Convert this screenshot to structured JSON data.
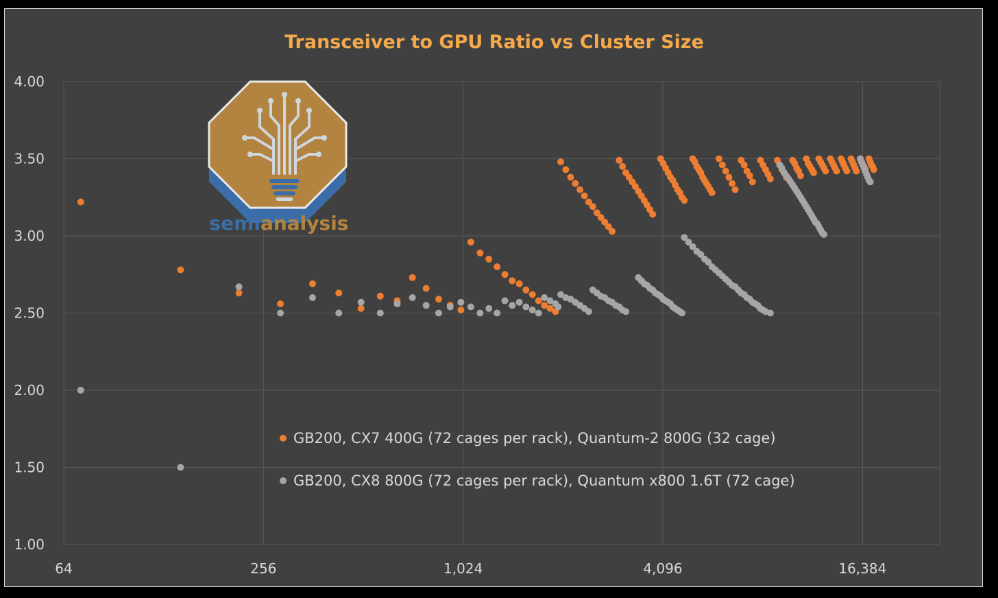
{
  "chart_data": {
    "type": "scatter",
    "title": "Transceiver to GPU Ratio vs Cluster Size",
    "xlabel": "",
    "ylabel": "",
    "x_scale": "log2",
    "xlim": [
      64,
      28000
    ],
    "ylim": [
      1.0,
      4.0
    ],
    "x_ticks": [
      64,
      256,
      1024,
      4096,
      16384
    ],
    "x_tick_labels": [
      "64",
      "256",
      "1,024",
      "4,096",
      "16,384"
    ],
    "y_ticks": [
      1.0,
      1.5,
      2.0,
      2.5,
      3.0,
      3.5,
      4.0
    ],
    "y_tick_labels": [
      "1.00",
      "1.50",
      "2.00",
      "2.50",
      "3.00",
      "3.50",
      "4.00"
    ],
    "grid": true,
    "legend_position": "center",
    "series": [
      {
        "name": "GB200, CX7 400G (72 cages per rack), Quantum-2 800G (32 cage)",
        "color": "#ed7d31",
        "points": [
          [
            72,
            3.22
          ],
          [
            144,
            2.78
          ],
          [
            216,
            2.63
          ],
          [
            288,
            2.56
          ],
          [
            360,
            2.69
          ],
          [
            432,
            2.63
          ],
          [
            504,
            2.53
          ],
          [
            576,
            2.61
          ],
          [
            648,
            2.58
          ],
          [
            720,
            2.73
          ],
          [
            792,
            2.66
          ],
          [
            864,
            2.59
          ],
          [
            936,
            2.55
          ],
          [
            1008,
            2.52
          ],
          [
            1080,
            2.96
          ],
          [
            1152,
            2.89
          ],
          [
            1224,
            2.85
          ],
          [
            1296,
            2.8
          ],
          [
            1368,
            2.75
          ],
          [
            1440,
            2.71
          ],
          [
            1512,
            2.69
          ],
          [
            1584,
            2.65
          ],
          [
            1656,
            2.62
          ],
          [
            1728,
            2.58
          ],
          [
            1800,
            2.55
          ],
          [
            1872,
            2.53
          ],
          [
            1944,
            2.51
          ],
          [
            2016,
            3.48
          ],
          [
            2088,
            3.43
          ],
          [
            2160,
            3.38
          ],
          [
            2232,
            3.34
          ],
          [
            2304,
            3.3
          ],
          [
            2376,
            3.26
          ],
          [
            2448,
            3.22
          ],
          [
            2520,
            3.19
          ],
          [
            2592,
            3.15
          ],
          [
            2664,
            3.12
          ],
          [
            2736,
            3.09
          ],
          [
            2808,
            3.06
          ],
          [
            2880,
            3.03
          ],
          [
            3024,
            3.49
          ],
          [
            3096,
            3.45
          ],
          [
            3168,
            3.41
          ],
          [
            3240,
            3.38
          ],
          [
            3312,
            3.35
          ],
          [
            3384,
            3.32
          ],
          [
            3456,
            3.29
          ],
          [
            3528,
            3.26
          ],
          [
            3600,
            3.23
          ],
          [
            3672,
            3.2
          ],
          [
            3744,
            3.17
          ],
          [
            3816,
            3.14
          ],
          [
            4032,
            3.5
          ],
          [
            4104,
            3.47
          ],
          [
            4176,
            3.44
          ],
          [
            4248,
            3.41
          ],
          [
            4320,
            3.38
          ],
          [
            4392,
            3.36
          ],
          [
            4464,
            3.33
          ],
          [
            4536,
            3.3
          ],
          [
            4608,
            3.28
          ],
          [
            4680,
            3.25
          ],
          [
            4752,
            3.23
          ],
          [
            5040,
            3.5
          ],
          [
            5112,
            3.48
          ],
          [
            5184,
            3.45
          ],
          [
            5256,
            3.43
          ],
          [
            5328,
            3.41
          ],
          [
            5400,
            3.38
          ],
          [
            5472,
            3.36
          ],
          [
            5544,
            3.34
          ],
          [
            5616,
            3.32
          ],
          [
            5688,
            3.3
          ],
          [
            5760,
            3.28
          ],
          [
            6048,
            3.5
          ],
          [
            6192,
            3.46
          ],
          [
            6336,
            3.42
          ],
          [
            6480,
            3.38
          ],
          [
            6624,
            3.34
          ],
          [
            6768,
            3.3
          ],
          [
            7056,
            3.49
          ],
          [
            7200,
            3.46
          ],
          [
            7344,
            3.42
          ],
          [
            7488,
            3.39
          ],
          [
            7632,
            3.35
          ],
          [
            8064,
            3.49
          ],
          [
            8208,
            3.46
          ],
          [
            8352,
            3.43
          ],
          [
            8496,
            3.4
          ],
          [
            8640,
            3.37
          ],
          [
            9072,
            3.49
          ],
          [
            9216,
            3.46
          ],
          [
            9360,
            3.43
          ],
          [
            9504,
            3.41
          ],
          [
            9648,
            3.38
          ],
          [
            10080,
            3.49
          ],
          [
            10224,
            3.47
          ],
          [
            10368,
            3.44
          ],
          [
            10512,
            3.42
          ],
          [
            10656,
            3.39
          ],
          [
            11088,
            3.5
          ],
          [
            11232,
            3.47
          ],
          [
            11376,
            3.45
          ],
          [
            11520,
            3.43
          ],
          [
            11664,
            3.41
          ],
          [
            12096,
            3.5
          ],
          [
            12240,
            3.48
          ],
          [
            12384,
            3.46
          ],
          [
            12528,
            3.44
          ],
          [
            12672,
            3.42
          ],
          [
            13104,
            3.5
          ],
          [
            13248,
            3.48
          ],
          [
            13392,
            3.46
          ],
          [
            13536,
            3.44
          ],
          [
            13680,
            3.42
          ],
          [
            14112,
            3.5
          ],
          [
            14256,
            3.48
          ],
          [
            14400,
            3.46
          ],
          [
            14544,
            3.44
          ],
          [
            14688,
            3.42
          ],
          [
            15120,
            3.5
          ],
          [
            15264,
            3.48
          ],
          [
            15408,
            3.46
          ],
          [
            15552,
            3.44
          ],
          [
            15696,
            3.42
          ],
          [
            16128,
            3.5
          ],
          [
            16272,
            3.48
          ],
          [
            16416,
            3.46
          ],
          [
            16560,
            3.45
          ],
          [
            16704,
            3.43
          ],
          [
            17136,
            3.5
          ],
          [
            17280,
            3.48
          ],
          [
            17424,
            3.46
          ],
          [
            17568,
            3.45
          ],
          [
            17712,
            3.43
          ]
        ]
      },
      {
        "name": "GB200, CX8 800G (72 cages per rack), Quantum x800 1.6T (72 cage)",
        "color": "#a6a6a6",
        "points": [
          [
            72,
            2.0
          ],
          [
            144,
            1.5
          ],
          [
            216,
            2.67
          ],
          [
            288,
            2.5
          ],
          [
            360,
            2.6
          ],
          [
            432,
            2.5
          ],
          [
            504,
            2.57
          ],
          [
            576,
            2.5
          ],
          [
            648,
            2.56
          ],
          [
            720,
            2.6
          ],
          [
            792,
            2.55
          ],
          [
            864,
            2.5
          ],
          [
            936,
            2.54
          ],
          [
            1008,
            2.57
          ],
          [
            1080,
            2.54
          ],
          [
            1152,
            2.5
          ],
          [
            1224,
            2.53
          ],
          [
            1296,
            2.5
          ],
          [
            1368,
            2.58
          ],
          [
            1440,
            2.55
          ],
          [
            1512,
            2.57
          ],
          [
            1584,
            2.54
          ],
          [
            1656,
            2.52
          ],
          [
            1728,
            2.5
          ],
          [
            1800,
            2.6
          ],
          [
            1872,
            2.58
          ],
          [
            1944,
            2.56
          ],
          [
            1980,
            2.54
          ],
          [
            2016,
            2.62
          ],
          [
            2088,
            2.6
          ],
          [
            2160,
            2.59
          ],
          [
            2232,
            2.57
          ],
          [
            2304,
            2.55
          ],
          [
            2376,
            2.53
          ],
          [
            2448,
            2.51
          ],
          [
            2520,
            2.65
          ],
          [
            2592,
            2.63
          ],
          [
            2664,
            2.61
          ],
          [
            2736,
            2.6
          ],
          [
            2808,
            2.58
          ],
          [
            2880,
            2.57
          ],
          [
            2952,
            2.55
          ],
          [
            3024,
            2.54
          ],
          [
            3096,
            2.52
          ],
          [
            3168,
            2.51
          ],
          [
            3456,
            2.73
          ],
          [
            3528,
            2.71
          ],
          [
            3600,
            2.69
          ],
          [
            3672,
            2.68
          ],
          [
            3744,
            2.66
          ],
          [
            3816,
            2.65
          ],
          [
            3888,
            2.63
          ],
          [
            3960,
            2.62
          ],
          [
            4032,
            2.61
          ],
          [
            4104,
            2.59
          ],
          [
            4176,
            2.58
          ],
          [
            4248,
            2.57
          ],
          [
            4320,
            2.56
          ],
          [
            4392,
            2.54
          ],
          [
            4464,
            2.53
          ],
          [
            4536,
            2.52
          ],
          [
            4608,
            2.51
          ],
          [
            4680,
            2.5
          ],
          [
            4752,
            2.99
          ],
          [
            4896,
            2.96
          ],
          [
            5040,
            2.93
          ],
          [
            5184,
            2.9
          ],
          [
            5328,
            2.88
          ],
          [
            5472,
            2.85
          ],
          [
            5616,
            2.83
          ],
          [
            5760,
            2.8
          ],
          [
            5904,
            2.78
          ],
          [
            6048,
            2.76
          ],
          [
            6192,
            2.74
          ],
          [
            6336,
            2.72
          ],
          [
            6480,
            2.7
          ],
          [
            6624,
            2.68
          ],
          [
            6768,
            2.67
          ],
          [
            6912,
            2.65
          ],
          [
            7056,
            2.63
          ],
          [
            7200,
            2.62
          ],
          [
            7344,
            2.6
          ],
          [
            7488,
            2.59
          ],
          [
            7632,
            2.57
          ],
          [
            7776,
            2.56
          ],
          [
            7920,
            2.55
          ],
          [
            8064,
            2.53
          ],
          [
            8208,
            2.52
          ],
          [
            8352,
            2.51
          ],
          [
            8640,
            2.5
          ],
          [
            9216,
            3.46
          ],
          [
            9360,
            3.44
          ],
          [
            9504,
            3.41
          ],
          [
            9648,
            3.39
          ],
          [
            9792,
            3.37
          ],
          [
            9936,
            3.35
          ],
          [
            10080,
            3.33
          ],
          [
            10224,
            3.31
          ],
          [
            10368,
            3.29
          ],
          [
            10512,
            3.27
          ],
          [
            10656,
            3.25
          ],
          [
            10800,
            3.23
          ],
          [
            10944,
            3.21
          ],
          [
            11088,
            3.19
          ],
          [
            11232,
            3.17
          ],
          [
            11376,
            3.15
          ],
          [
            11520,
            3.13
          ],
          [
            11664,
            3.11
          ],
          [
            11808,
            3.09
          ],
          [
            11952,
            3.08
          ],
          [
            12096,
            3.06
          ],
          [
            12240,
            3.04
          ],
          [
            12384,
            3.02
          ],
          [
            12528,
            3.01
          ],
          [
            16128,
            3.5
          ],
          [
            16272,
            3.48
          ],
          [
            16416,
            3.46
          ],
          [
            16560,
            3.44
          ],
          [
            16704,
            3.42
          ],
          [
            16848,
            3.4
          ],
          [
            16992,
            3.38
          ],
          [
            17136,
            3.36
          ],
          [
            17280,
            3.35
          ]
        ]
      }
    ]
  },
  "logo": {
    "word_part1": "semi",
    "word_part2": "analysis",
    "icon": "circuit-tree-lightbulb-icon"
  }
}
